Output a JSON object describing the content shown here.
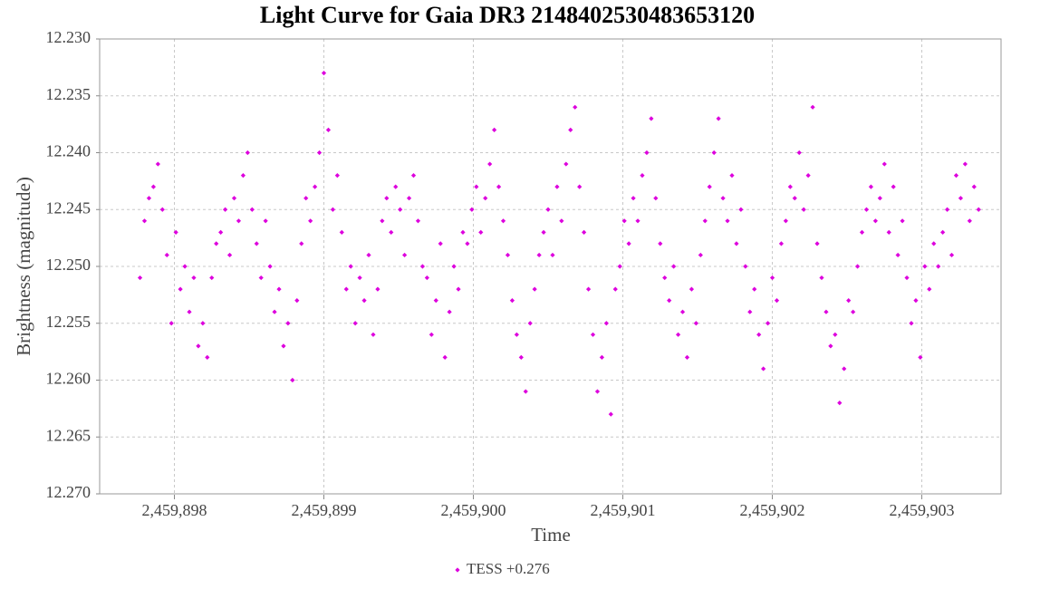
{
  "chart_data": {
    "type": "scatter",
    "title": "Light Curve for Gaia DR3 2148402530483653120",
    "x_label": "Time",
    "y_label": "Brightness (magnitude)",
    "xlim": [
      2459897.5,
      2459903.53
    ],
    "ylim": [
      12.23,
      12.27
    ],
    "y_inverted": true,
    "grid": true,
    "legend": "bottom",
    "xticks": [
      {
        "value": 2459898,
        "label": "2,459,898"
      },
      {
        "value": 2459899,
        "label": "2,459,899"
      },
      {
        "value": 2459900,
        "label": "2,459,900"
      },
      {
        "value": 2459901,
        "label": "2,459,901"
      },
      {
        "value": 2459902,
        "label": "2,459,902"
      },
      {
        "value": 2459903,
        "label": "2,459,903"
      }
    ],
    "yticks": [
      {
        "value": 12.23,
        "label": "12.230"
      },
      12.235,
      {
        "value": 12.24,
        "label": "12.240"
      },
      12.245,
      {
        "value": 12.25,
        "label": "12.250"
      },
      12.255,
      {
        "value": 12.26,
        "label": "12.260"
      },
      12.265,
      {
        "value": 12.27,
        "label": "12.270"
      }
    ],
    "series": [
      {
        "name": "TESS +0.276",
        "color": "#dd00dd",
        "x": [
          2459897.77,
          2459897.8,
          2459897.83,
          2459897.86,
          2459897.89,
          2459897.92,
          2459897.95,
          2459897.98,
          2459898.01,
          2459898.04,
          2459898.07,
          2459898.1,
          2459898.13,
          2459898.16,
          2459898.19,
          2459898.22,
          2459898.25,
          2459898.28,
          2459898.31,
          2459898.34,
          2459898.37,
          2459898.4,
          2459898.43,
          2459898.46,
          2459898.49,
          2459898.52,
          2459898.55,
          2459898.58,
          2459898.61,
          2459898.64,
          2459898.67,
          2459898.7,
          2459898.73,
          2459898.76,
          2459898.79,
          2459898.82,
          2459898.85,
          2459898.88,
          2459898.91,
          2459898.94,
          2459898.97,
          2459899.0,
          2459899.03,
          2459899.06,
          2459899.09,
          2459899.12,
          2459899.15,
          2459899.18,
          2459899.21,
          2459899.24,
          2459899.27,
          2459899.3,
          2459899.33,
          2459899.36,
          2459899.39,
          2459899.42,
          2459899.45,
          2459899.48,
          2459899.51,
          2459899.54,
          2459899.57,
          2459899.6,
          2459899.63,
          2459899.66,
          2459899.69,
          2459899.72,
          2459899.75,
          2459899.78,
          2459899.81,
          2459899.84,
          2459899.87,
          2459899.9,
          2459899.93,
          2459899.96,
          2459899.99,
          2459900.02,
          2459900.05,
          2459900.08,
          2459900.11,
          2459900.14,
          2459900.17,
          2459900.2,
          2459900.23,
          2459900.26,
          2459900.29,
          2459900.32,
          2459900.35,
          2459900.38,
          2459900.41,
          2459900.44,
          2459900.47,
          2459900.5,
          2459900.53,
          2459900.56,
          2459900.59,
          2459900.62,
          2459900.65,
          2459900.68,
          2459900.71,
          2459900.74,
          2459900.77,
          2459900.8,
          2459900.83,
          2459900.86,
          2459900.89,
          2459900.92,
          2459900.95,
          2459900.98,
          2459901.01,
          2459901.04,
          2459901.07,
          2459901.1,
          2459901.13,
          2459901.16,
          2459901.19,
          2459901.22,
          2459901.25,
          2459901.28,
          2459901.31,
          2459901.34,
          2459901.37,
          2459901.4,
          2459901.43,
          2459901.46,
          2459901.49,
          2459901.52,
          2459901.55,
          2459901.58,
          2459901.61,
          2459901.64,
          2459901.67,
          2459901.7,
          2459901.73,
          2459901.76,
          2459901.79,
          2459901.82,
          2459901.85,
          2459901.88,
          2459901.91,
          2459901.94,
          2459901.97,
          2459902.0,
          2459902.03,
          2459902.06,
          2459902.09,
          2459902.12,
          2459902.15,
          2459902.18,
          2459902.21,
          2459902.24,
          2459902.27,
          2459902.3,
          2459902.33,
          2459902.36,
          2459902.39,
          2459902.42,
          2459902.45,
          2459902.48,
          2459902.51,
          2459902.54,
          2459902.57,
          2459902.6,
          2459902.63,
          2459902.66,
          2459902.69,
          2459902.72,
          2459902.75,
          2459902.78,
          2459902.81,
          2459902.84,
          2459902.87,
          2459902.9,
          2459902.93,
          2459902.96,
          2459902.99,
          2459903.02,
          2459903.05,
          2459903.08,
          2459903.11,
          2459903.14,
          2459903.17,
          2459903.2,
          2459903.23,
          2459903.26,
          2459903.29,
          2459903.32,
          2459903.35,
          2459903.38
        ],
        "values": [
          12.251,
          12.246,
          12.244,
          12.243,
          12.241,
          12.245,
          12.249,
          12.255,
          12.247,
          12.252,
          12.25,
          12.254,
          12.251,
          12.257,
          12.255,
          12.258,
          12.251,
          12.248,
          12.247,
          12.245,
          12.249,
          12.244,
          12.246,
          12.242,
          12.24,
          12.245,
          12.248,
          12.251,
          12.246,
          12.25,
          12.254,
          12.252,
          12.257,
          12.255,
          12.26,
          12.253,
          12.248,
          12.244,
          12.246,
          12.243,
          12.24,
          12.233,
          12.238,
          12.245,
          12.242,
          12.247,
          12.252,
          12.25,
          12.255,
          12.251,
          12.253,
          12.249,
          12.256,
          12.252,
          12.246,
          12.244,
          12.247,
          12.243,
          12.245,
          12.249,
          12.244,
          12.242,
          12.246,
          12.25,
          12.251,
          12.256,
          12.253,
          12.248,
          12.258,
          12.254,
          12.25,
          12.252,
          12.247,
          12.248,
          12.245,
          12.243,
          12.247,
          12.244,
          12.241,
          12.238,
          12.243,
          12.246,
          12.249,
          12.253,
          12.256,
          12.258,
          12.261,
          12.255,
          12.252,
          12.249,
          12.247,
          12.245,
          12.249,
          12.243,
          12.246,
          12.241,
          12.238,
          12.236,
          12.243,
          12.247,
          12.252,
          12.256,
          12.261,
          12.258,
          12.255,
          12.263,
          12.252,
          12.25,
          12.246,
          12.248,
          12.244,
          12.246,
          12.242,
          12.24,
          12.237,
          12.244,
          12.248,
          12.251,
          12.253,
          12.25,
          12.256,
          12.254,
          12.258,
          12.252,
          12.255,
          12.249,
          12.246,
          12.243,
          12.24,
          12.237,
          12.244,
          12.246,
          12.242,
          12.248,
          12.245,
          12.25,
          12.254,
          12.252,
          12.256,
          12.259,
          12.255,
          12.251,
          12.253,
          12.248,
          12.246,
          12.243,
          12.244,
          12.24,
          12.245,
          12.242,
          12.236,
          12.248,
          12.251,
          12.254,
          12.257,
          12.256,
          12.262,
          12.259,
          12.253,
          12.254,
          12.25,
          12.247,
          12.245,
          12.243,
          12.246,
          12.244,
          12.241,
          12.247,
          12.243,
          12.249,
          12.246,
          12.251,
          12.255,
          12.253,
          12.258,
          12.25,
          12.252,
          12.248,
          12.25,
          12.247,
          12.245,
          12.249,
          12.242,
          12.244,
          12.241,
          12.246,
          12.243,
          12.245
        ]
      }
    ]
  }
}
